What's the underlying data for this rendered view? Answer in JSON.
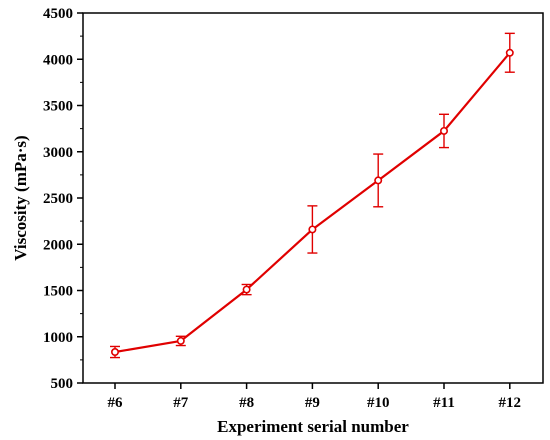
{
  "chart_data": {
    "type": "line",
    "title": "",
    "xlabel": "Experiment serial number",
    "ylabel": "Viscosity (mPa·s)",
    "categories": [
      "#6",
      "#7",
      "#8",
      "#9",
      "#10",
      "#11",
      "#12"
    ],
    "ylim": [
      500,
      4500
    ],
    "yticks": [
      500,
      1000,
      1500,
      2000,
      2500,
      3000,
      3500,
      4000,
      4500
    ],
    "grid": false,
    "series": [
      {
        "name": "",
        "color": "#e00000",
        "values": [
          835,
          955,
          1510,
          2160,
          2690,
          3225,
          4070
        ],
        "error": [
          60,
          50,
          55,
          255,
          285,
          180,
          210
        ]
      }
    ]
  }
}
